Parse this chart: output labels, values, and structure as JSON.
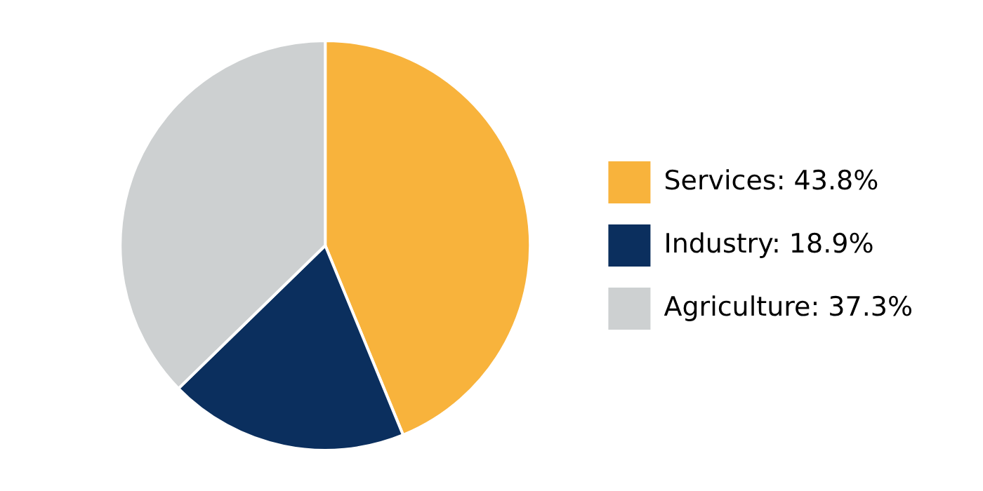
{
  "chart_data": {
    "type": "pie",
    "categories": [
      "Services",
      "Industry",
      "Agriculture"
    ],
    "values": [
      43.8,
      18.9,
      37.3
    ],
    "colors": [
      "#f8b33c",
      "#0b2f5e",
      "#cdd0d1"
    ],
    "value_labels": [
      "43.8%",
      "18.9%",
      "37.3%"
    ],
    "legend": "right"
  }
}
